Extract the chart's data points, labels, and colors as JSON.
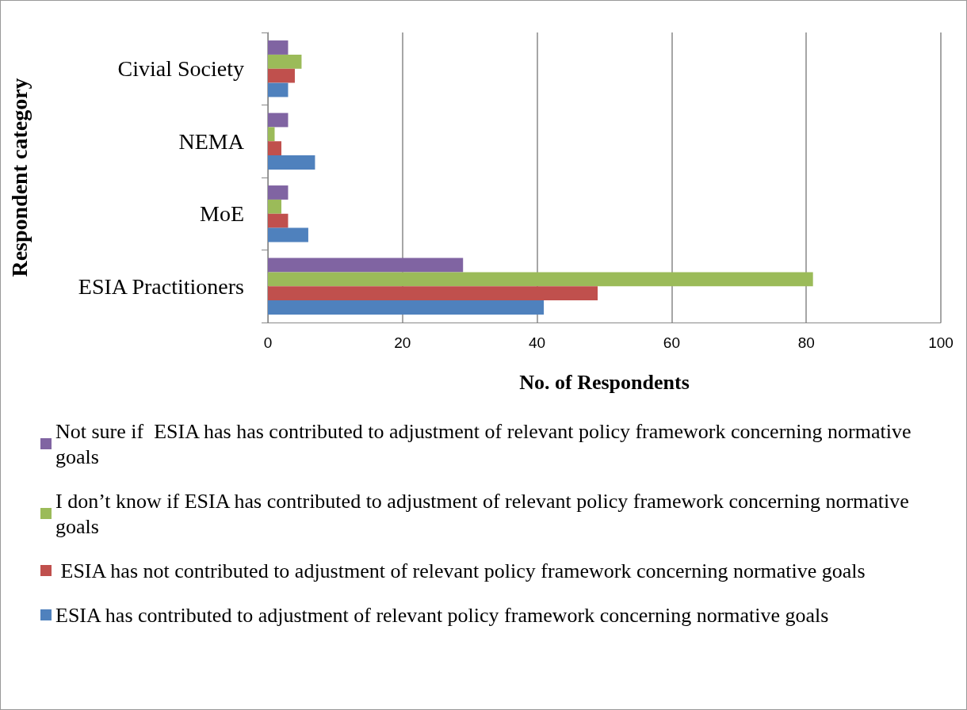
{
  "chart_data": {
    "type": "bar",
    "orientation": "horizontal",
    "xlabel": "No. of Respondents",
    "ylabel": "Respondent category",
    "categories": [
      "Civial Society",
      "NEMA",
      "MoE",
      "ESIA Practitioners"
    ],
    "series": [
      {
        "name": "Not sure if  ESIA has has contributed to adjustment of relevant policy framework concerning normative goals",
        "color": "#8064a2",
        "values": [
          3,
          3,
          3,
          29
        ]
      },
      {
        "name": "I don’t know if ESIA has contributed to adjustment of relevant policy framework concerning normative goals",
        "color": "#9bbb59",
        "values": [
          5,
          1,
          2,
          81
        ]
      },
      {
        "name": " ESIA has not contributed to adjustment of relevant policy framework concerning normative goals",
        "color": "#c0504d",
        "values": [
          4,
          2,
          3,
          49
        ]
      },
      {
        "name": "ESIA has contributed to adjustment of relevant policy framework concerning normative goals",
        "color": "#4f81bd",
        "values": [
          3,
          7,
          6,
          41
        ]
      }
    ],
    "xlim": [
      0,
      100
    ],
    "xticks": [
      0,
      20,
      40,
      60,
      80,
      100
    ],
    "grid": "x",
    "legend": "bottom"
  }
}
